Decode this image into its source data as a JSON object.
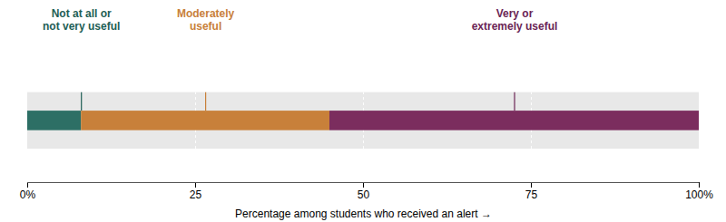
{
  "chart_data": {
    "type": "bar",
    "orientation": "horizontal",
    "stacked": true,
    "values": [
      8,
      37,
      55
    ],
    "colors": [
      "#2d6f65",
      "#c8803a",
      "#7b2d5e"
    ],
    "xlabel": "Percentage among students who received an alert",
    "xlim": [
      0,
      100
    ],
    "xticks": [
      {
        "value": 0,
        "label": "0%"
      },
      25,
      50,
      75,
      {
        "value": 100,
        "label": "100%"
      }
    ],
    "tick_labels": "x",
    "grid": true,
    "annotations": [
      {
        "text": "Not at all or\nnot very useful",
        "x": 8,
        "color": "#1e5e55"
      },
      {
        "text": "Moderately\nuseful",
        "x": 26.5,
        "color": "#c8803a"
      },
      {
        "text": "Very or\nextremely useful",
        "x": 72.5,
        "color": "#6b2555"
      }
    ]
  }
}
